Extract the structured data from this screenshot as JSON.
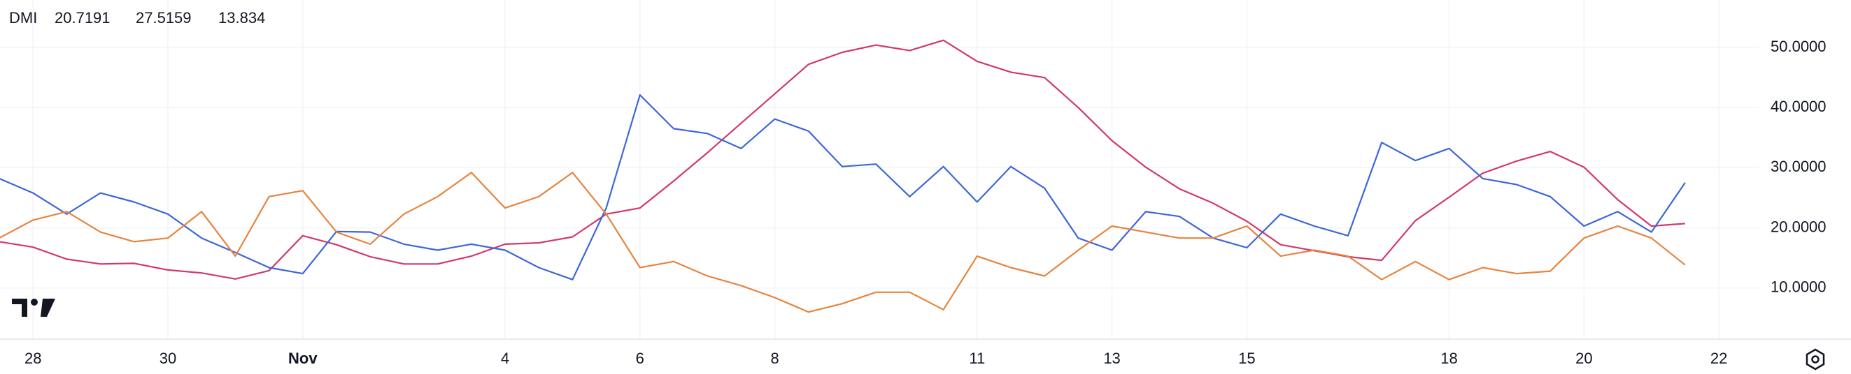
{
  "chart_data": {
    "type": "line",
    "title": "DMI",
    "x": [
      -0.5,
      0,
      0.5,
      1,
      1.5,
      2,
      2.5,
      3,
      3.5,
      4,
      4.5,
      5,
      5.5,
      6,
      6.5,
      7,
      7.5,
      8,
      8.5,
      9,
      9.5,
      10,
      10.5,
      11,
      11.5,
      12,
      12.5,
      13,
      13.5,
      14,
      14.5,
      15,
      15.5,
      16,
      16.5,
      17,
      17.5,
      18,
      18.5,
      19,
      19.5,
      20,
      20.5,
      21,
      21.5,
      22,
      22.5,
      23,
      23.5,
      24,
      24.5
    ],
    "series": [
      {
        "color": "#d2386c",
        "values": [
          17.7,
          16.8,
          14.8,
          14.0,
          14.1,
          13.0,
          12.5,
          11.5,
          12.9,
          18.7,
          17.2,
          15.2,
          14.0,
          14.0,
          15.3,
          17.3,
          17.5,
          18.5,
          22.3,
          23.3,
          27.8,
          32.5,
          37.4,
          42.3,
          47.2,
          49.2,
          50.4,
          49.5,
          51.2,
          47.7,
          45.9,
          45.0,
          40.0,
          34.5,
          30.1,
          26.5,
          24.1,
          21.1,
          17.2,
          16.2,
          15.2,
          14.6,
          21.2,
          25.1,
          29.1,
          31.1,
          32.7,
          30.1,
          24.7,
          20.3,
          20.7191
        ]
      },
      {
        "color": "#3d66d8",
        "values": [
          28.2,
          25.8,
          22.3,
          25.8,
          24.3,
          22.3,
          18.3,
          15.9,
          13.4,
          12.4,
          19.4,
          19.3,
          17.3,
          16.3,
          17.3,
          16.3,
          13.4,
          11.4,
          23.3,
          42.1,
          36.5,
          35.7,
          33.2,
          38.1,
          36.1,
          30.2,
          30.6,
          25.2,
          30.2,
          24.3,
          30.2,
          26.6,
          18.3,
          16.3,
          22.7,
          21.9,
          18.3,
          16.7,
          22.3,
          20.3,
          18.7,
          34.2,
          31.2,
          33.2,
          28.2,
          27.2,
          25.2,
          20.3,
          22.7,
          19.3,
          27.5159
        ]
      },
      {
        "color": "#e6843f",
        "values": [
          18.3,
          21.3,
          22.7,
          19.3,
          17.7,
          18.3,
          22.7,
          15.3,
          25.2,
          26.2,
          19.3,
          17.3,
          22.3,
          25.2,
          29.2,
          23.3,
          25.2,
          29.2,
          22.3,
          13.4,
          14.4,
          12.0,
          10.4,
          8.4,
          6.0,
          7.4,
          9.3,
          9.3,
          6.4,
          15.3,
          13.4,
          12.0,
          16.3,
          20.3,
          19.3,
          18.3,
          18.3,
          20.3,
          15.3,
          16.3,
          15.3,
          11.4,
          14.4,
          11.4,
          13.4,
          12.4,
          12.8,
          18.3,
          20.3,
          18.3,
          13.834
        ]
      }
    ],
    "xlim": [
      -0.49,
      25.59
    ],
    "xticks": [
      {
        "value": 0,
        "label": "28"
      },
      {
        "value": 2,
        "label": "30"
      },
      {
        "value": 4,
        "label": "Nov"
      },
      {
        "value": 7,
        "label": "4"
      },
      {
        "value": 9,
        "label": "6"
      },
      {
        "value": 11,
        "label": "8"
      },
      {
        "value": 14,
        "label": "11"
      },
      {
        "value": 16,
        "label": "13"
      },
      {
        "value": 18,
        "label": "15"
      },
      {
        "value": 21,
        "label": "18"
      },
      {
        "value": 23,
        "label": "20"
      },
      {
        "value": 25,
        "label": "22"
      }
    ],
    "ylim": [
      1.5,
      57.9
    ],
    "yticks": [
      {
        "value": 10,
        "label": "10.0000"
      },
      {
        "value": 20,
        "label": "20.0000"
      },
      {
        "value": 30,
        "label": "30.0000"
      },
      {
        "value": 40,
        "label": "40.0000"
      },
      {
        "value": 50,
        "label": "50.0000"
      }
    ],
    "grid": true
  }
}
